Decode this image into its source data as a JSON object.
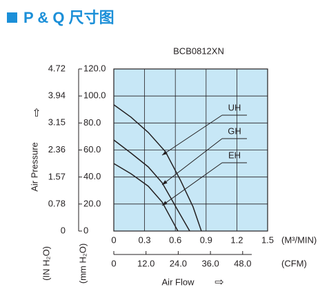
{
  "header": {
    "title": "P & Q 尺寸图"
  },
  "chart_data": {
    "type": "line",
    "title": "BCB0812XN",
    "y_label": "Air Pressure",
    "y_unit": "(mm H₂O)",
    "y2_unit": "(IN H₂O)",
    "x_label": "Air Flow",
    "x_unit": "(M³/MIN)",
    "x2_unit": "(CFM)",
    "xlim": [
      0,
      1.5
    ],
    "xticks": [
      0,
      0.3,
      0.6,
      0.9,
      1.2,
      1.5
    ],
    "x2lim": [
      0,
      57.3
    ],
    "x2ticks": [
      0,
      {
        "value": 12,
        "label": "12.0"
      },
      {
        "value": 24,
        "label": "24.0"
      },
      {
        "value": 36,
        "label": "36.0"
      },
      {
        "value": 48,
        "label": "48.0"
      }
    ],
    "ylim": [
      0,
      120
    ],
    "yticks": [
      0,
      {
        "value": 20,
        "label": "20.0"
      },
      {
        "value": 40,
        "label": "40.0"
      },
      {
        "value": 60,
        "label": "60.0"
      },
      {
        "value": 80,
        "label": "80.0"
      },
      {
        "value": 100,
        "label": "100.0"
      },
      {
        "value": 120,
        "label": "120.0"
      }
    ],
    "y2lim": [
      0,
      4.72
    ],
    "y2ticks": [
      0,
      0.78,
      1.57,
      2.36,
      3.15,
      3.94,
      4.72
    ],
    "grid": true,
    "background": "#c7e7f6",
    "series": [
      {
        "name": "UH",
        "color": "#231f20",
        "x": [
          0,
          0.168,
          0.336,
          0.504,
          0.652,
          0.773,
          0.854
        ],
        "values": [
          93.5,
          84.3,
          73,
          58.7,
          37.3,
          17.9,
          0
        ]
      },
      {
        "name": "GH",
        "color": "#231f20",
        "x": [
          0,
          0.168,
          0.336,
          0.471,
          0.605,
          0.74
        ],
        "values": [
          67.4,
          57.7,
          47.5,
          35.8,
          17.9,
          0
        ]
      },
      {
        "name": "EH",
        "color": "#231f20",
        "x": [
          0,
          0.168,
          0.336,
          0.471,
          0.625
        ],
        "values": [
          50,
          42.4,
          33.2,
          21.5,
          0
        ]
      }
    ]
  }
}
